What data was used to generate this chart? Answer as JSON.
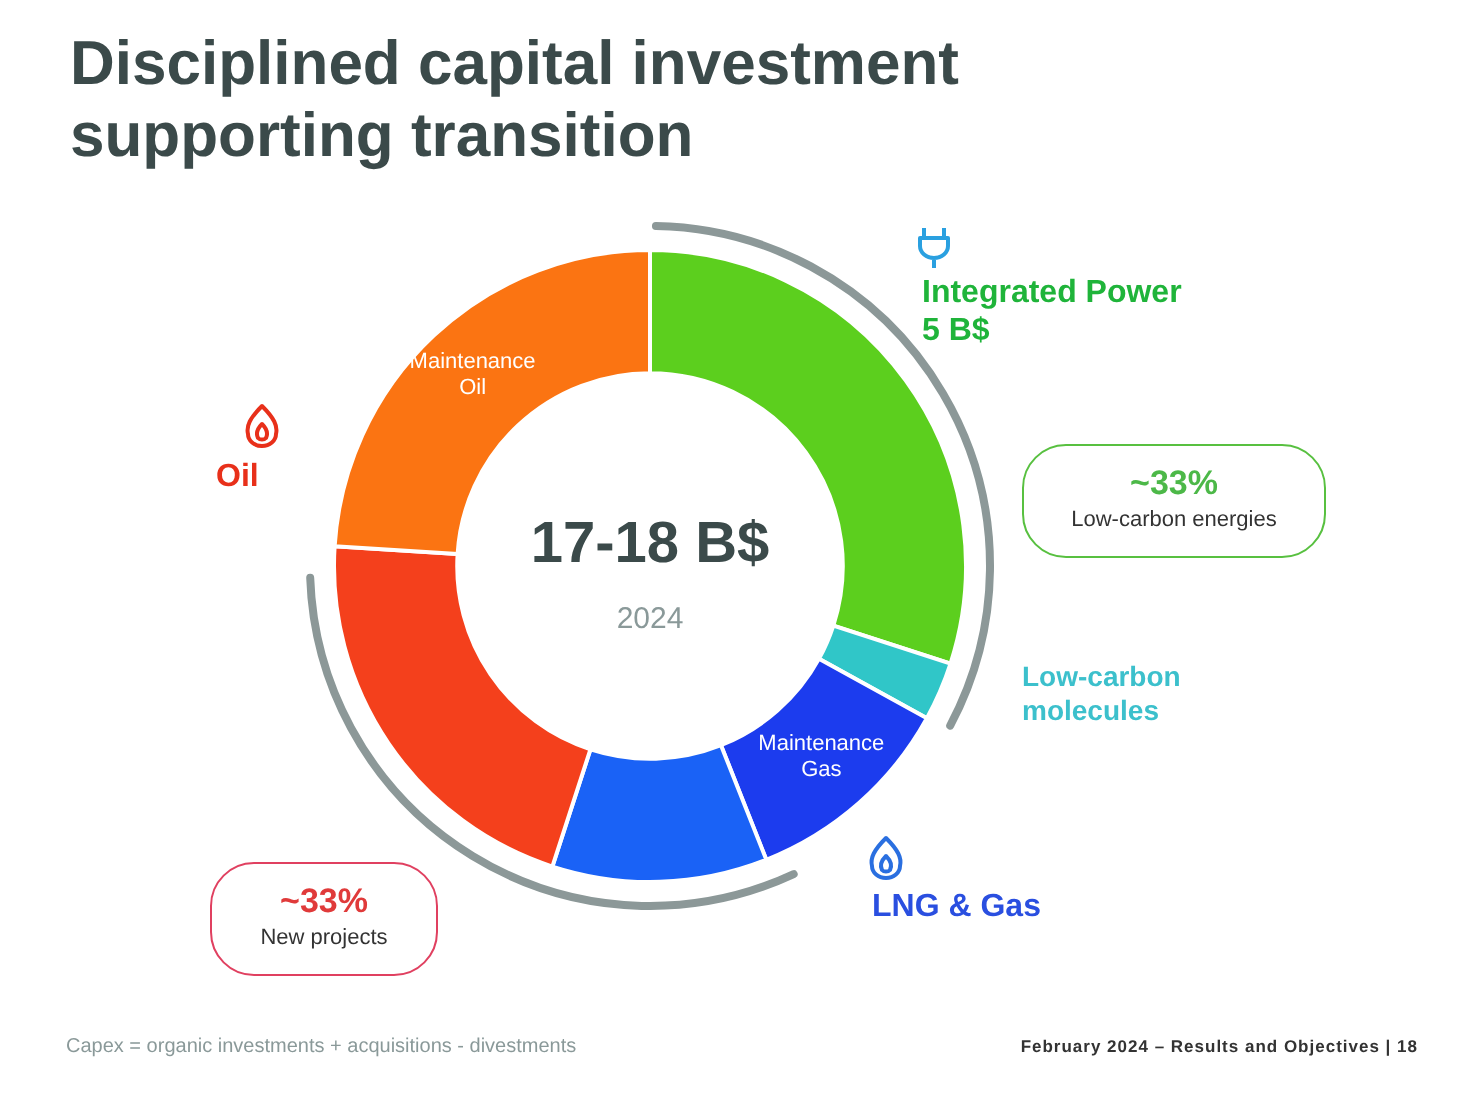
{
  "chart_data": {
    "type": "donut",
    "title": "Disciplined capital investment\nsupporting transition",
    "categories": [
      "Integrated Power\n5 B$",
      "Low-carbon\nmolecules",
      "Maintenance\nGas",
      null,
      null,
      "Maintenance\nOil"
    ],
    "values": [
      30,
      3,
      11,
      11,
      21,
      24
    ],
    "colors": [
      "#5ccf1e",
      "#30c6c8",
      "#1c3cee",
      "#1a62f6",
      "#f4401c",
      "#fb7412"
    ],
    "legend": false,
    "annotations": [
      "Oil",
      "LNG & Gas",
      "~33%\nLow-carbon energies",
      "~33%\nNew projects",
      "17-18 B$",
      "2024",
      "Capex = organic investments + acquisitions - divestments",
      "February 2024 – Results and Objectives | 18"
    ]
  }
}
